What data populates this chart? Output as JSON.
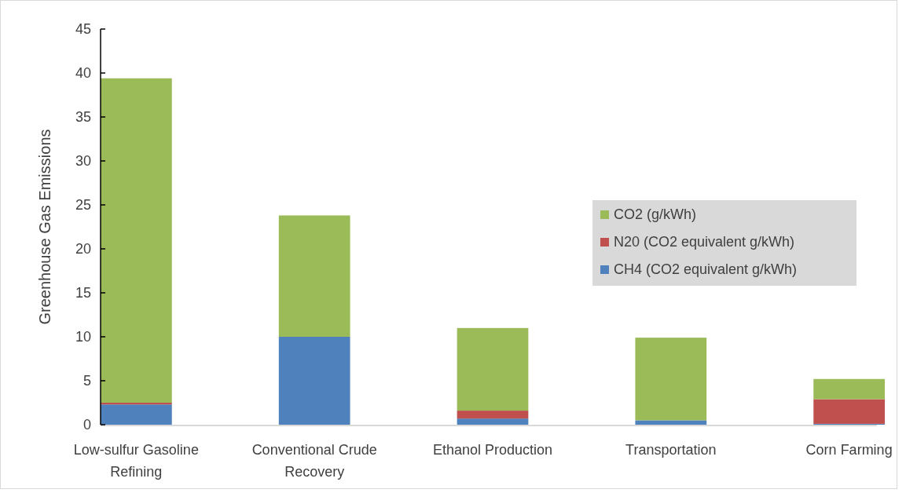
{
  "chart_data": {
    "type": "bar",
    "stacked": true,
    "ylabel": "Greenhouse Gas Emissions",
    "categories": [
      "Low-sulfur Gasoline Refining",
      "Conventional Crude Recovery",
      "Ethanol Production",
      "Transportation",
      "Corn Farming"
    ],
    "series": [
      {
        "name": "CH4 (CO2 equivalent g/kWh)",
        "color": "#4f81bd",
        "values": [
          2.3,
          10.0,
          0.7,
          0.5,
          0.1
        ]
      },
      {
        "name": "N20 (CO2 equivalent g/kWh)",
        "color": "#c0504d",
        "values": [
          0.2,
          0,
          0.9,
          0,
          2.8
        ]
      },
      {
        "name": "CO2 (g/kWh)",
        "color": "#9bbb59",
        "values": [
          36.9,
          13.8,
          9.4,
          9.4,
          2.3
        ]
      }
    ],
    "ylim": [
      0,
      45
    ],
    "yticks": [
      0,
      5,
      10,
      15,
      20,
      25,
      30,
      35,
      40,
      45
    ],
    "grid": false,
    "legend": "right"
  }
}
